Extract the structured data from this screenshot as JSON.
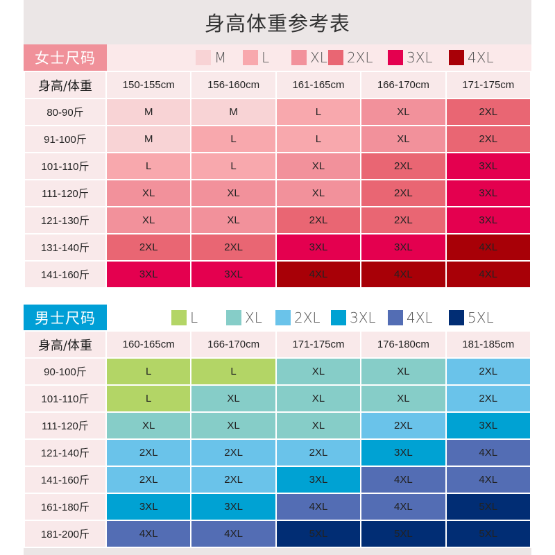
{
  "title": "身高体重参考表",
  "women": {
    "label": "女士尺码",
    "label_color": "#f0919a",
    "legend": [
      {
        "size": "M",
        "color": "#f8d3d5"
      },
      {
        "size": "L",
        "color": "#f8a8ad"
      },
      {
        "size": "XL",
        "color": "#f2919b"
      },
      {
        "size": "2XL",
        "color": "#e96673"
      },
      {
        "size": "3XL",
        "color": "#e4004f"
      },
      {
        "size": "4XL",
        "color": "#a80007"
      }
    ],
    "corner_label": "身高/体重",
    "columns": [
      "150-155cm",
      "156-160cm",
      "161-165cm",
      "166-170cm",
      "171-175cm"
    ],
    "rows": [
      {
        "weight": "80-90斤",
        "sizes": [
          "M",
          "M",
          "L",
          "XL",
          "2XL"
        ]
      },
      {
        "weight": "91-100斤",
        "sizes": [
          "M",
          "L",
          "L",
          "XL",
          "2XL"
        ]
      },
      {
        "weight": "101-110斤",
        "sizes": [
          "L",
          "L",
          "XL",
          "2XL",
          "3XL"
        ]
      },
      {
        "weight": "111-120斤",
        "sizes": [
          "XL",
          "XL",
          "XL",
          "2XL",
          "3XL"
        ]
      },
      {
        "weight": "121-130斤",
        "sizes": [
          "XL",
          "XL",
          "2XL",
          "2XL",
          "3XL"
        ]
      },
      {
        "weight": "131-140斤",
        "sizes": [
          "2XL",
          "2XL",
          "3XL",
          "3XL",
          "4XL"
        ]
      },
      {
        "weight": "141-160斤",
        "sizes": [
          "3XL",
          "3XL",
          "4XL",
          "4XL",
          "4XL"
        ]
      }
    ]
  },
  "men": {
    "label": "男士尺码",
    "label_color": "#009fd6",
    "legend": [
      {
        "size": "L",
        "color": "#b3d566"
      },
      {
        "size": "XL",
        "color": "#86cdc8"
      },
      {
        "size": "2XL",
        "color": "#6ac3ea"
      },
      {
        "size": "3XL",
        "color": "#00a2d3"
      },
      {
        "size": "4XL",
        "color": "#536db4"
      },
      {
        "size": "5XL",
        "color": "#012d74"
      }
    ],
    "corner_label": "身高/体重",
    "columns": [
      "160-165cm",
      "166-170cm",
      "171-175cm",
      "176-180cm",
      "181-185cm"
    ],
    "rows": [
      {
        "weight": "90-100斤",
        "sizes": [
          "L",
          "L",
          "XL",
          "XL",
          "2XL"
        ]
      },
      {
        "weight": "101-110斤",
        "sizes": [
          "L",
          "XL",
          "XL",
          "XL",
          "2XL"
        ]
      },
      {
        "weight": "111-120斤",
        "sizes": [
          "XL",
          "XL",
          "XL",
          "2XL",
          "3XL"
        ]
      },
      {
        "weight": "121-140斤",
        "sizes": [
          "2XL",
          "2XL",
          "2XL",
          "3XL",
          "4XL"
        ]
      },
      {
        "weight": "141-160斤",
        "sizes": [
          "2XL",
          "2XL",
          "3XL",
          "4XL",
          "4XL"
        ]
      },
      {
        "weight": "161-180斤",
        "sizes": [
          "3XL",
          "3XL",
          "4XL",
          "4XL",
          "5XL"
        ]
      },
      {
        "weight": "181-200斤",
        "sizes": [
          "4XL",
          "4XL",
          "5XL",
          "5XL",
          "5XL"
        ]
      }
    ]
  },
  "chart_data": [
    {
      "type": "table",
      "title": "女士尺码",
      "xlabel": "身高",
      "ylabel": "体重",
      "categories": [
        "150-155cm",
        "156-160cm",
        "161-165cm",
        "166-170cm",
        "171-175cm"
      ],
      "row_labels": [
        "80-90斤",
        "91-100斤",
        "101-110斤",
        "111-120斤",
        "121-130斤",
        "131-140斤",
        "141-160斤"
      ],
      "values": [
        [
          "M",
          "M",
          "L",
          "XL",
          "2XL"
        ],
        [
          "M",
          "L",
          "L",
          "XL",
          "2XL"
        ],
        [
          "L",
          "L",
          "XL",
          "2XL",
          "3XL"
        ],
        [
          "XL",
          "XL",
          "XL",
          "2XL",
          "3XL"
        ],
        [
          "XL",
          "XL",
          "2XL",
          "2XL",
          "3XL"
        ],
        [
          "2XL",
          "2XL",
          "3XL",
          "3XL",
          "4XL"
        ],
        [
          "3XL",
          "3XL",
          "4XL",
          "4XL",
          "4XL"
        ]
      ]
    },
    {
      "type": "table",
      "title": "男士尺码",
      "xlabel": "身高",
      "ylabel": "体重",
      "categories": [
        "160-165cm",
        "166-170cm",
        "171-175cm",
        "176-180cm",
        "181-185cm"
      ],
      "row_labels": [
        "90-100斤",
        "101-110斤",
        "111-120斤",
        "121-140斤",
        "141-160斤",
        "161-180斤",
        "181-200斤"
      ],
      "values": [
        [
          "L",
          "L",
          "XL",
          "XL",
          "2XL"
        ],
        [
          "L",
          "XL",
          "XL",
          "XL",
          "2XL"
        ],
        [
          "XL",
          "XL",
          "XL",
          "2XL",
          "3XL"
        ],
        [
          "2XL",
          "2XL",
          "2XL",
          "3XL",
          "4XL"
        ],
        [
          "2XL",
          "2XL",
          "3XL",
          "4XL",
          "4XL"
        ],
        [
          "3XL",
          "3XL",
          "4XL",
          "4XL",
          "5XL"
        ],
        [
          "4XL",
          "4XL",
          "5XL",
          "5XL",
          "5XL"
        ]
      ]
    }
  ]
}
